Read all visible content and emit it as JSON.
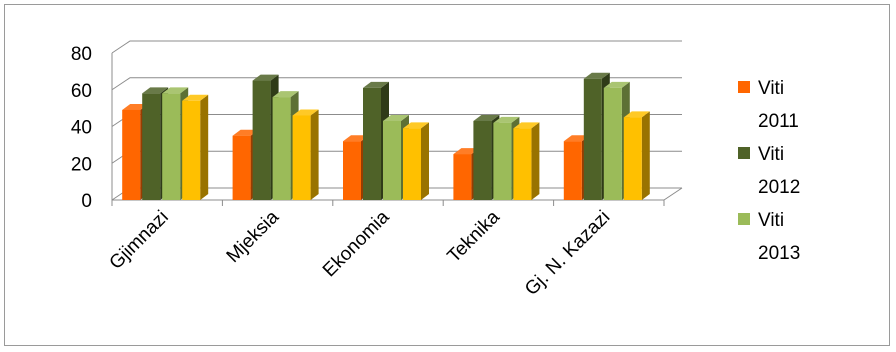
{
  "chart_data": {
    "type": "bar",
    "title": "",
    "xlabel": "",
    "ylabel": "",
    "ylim": [
      0,
      80
    ],
    "yticks": [
      "0",
      "20",
      "40",
      "60",
      "80"
    ],
    "categories": [
      "Gjimnazi",
      "Mjeksia",
      "Ekonomia",
      "Teknika",
      "Gj. N. Kazazi"
    ],
    "series": [
      {
        "name_line1": "Viti",
        "name_line2": "2011",
        "color": "#ff6600",
        "values": [
          49,
          35,
          32,
          25,
          32
        ]
      },
      {
        "name_line1": "Viti",
        "name_line2": "2012",
        "color": "#4f6228",
        "values": [
          58,
          65,
          61,
          43,
          66
        ]
      },
      {
        "name_line1": "Viti",
        "name_line2": "2013",
        "color": "#9bbb59",
        "values": [
          58,
          56,
          43,
          42,
          61
        ]
      },
      {
        "name_line1": "",
        "name_line2": "",
        "color": "#ffc000",
        "values": [
          54,
          46,
          39,
          39,
          45
        ]
      }
    ],
    "grid": true,
    "legend": "right"
  }
}
